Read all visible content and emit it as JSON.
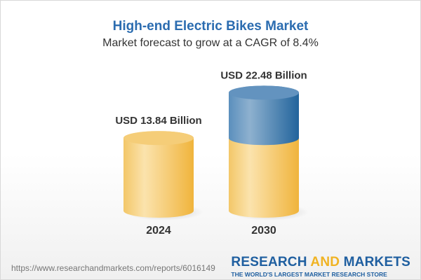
{
  "title": "High-end Electric Bikes Market",
  "subtitle": "Market forecast to grow at a CAGR of 8.4%",
  "chart_data": {
    "type": "bar",
    "style": "3d-cylinder",
    "categories": [
      "2024",
      "2030"
    ],
    "values": [
      13.84,
      22.48
    ],
    "data_labels": [
      "USD 13.84 Billion",
      "USD 22.48 Billion"
    ],
    "unit": "USD Billion",
    "colors": {
      "base": "#f2c05a",
      "growth": "#4a80b0"
    }
  },
  "footer": {
    "url": "https://www.researchandmarkets.com/reports/6016149",
    "logo_part1": "RESEARCH ",
    "logo_part2": "AND",
    "logo_part3": " MARKETS",
    "tagline": "THE WORLD'S LARGEST MARKET RESEARCH STORE"
  }
}
